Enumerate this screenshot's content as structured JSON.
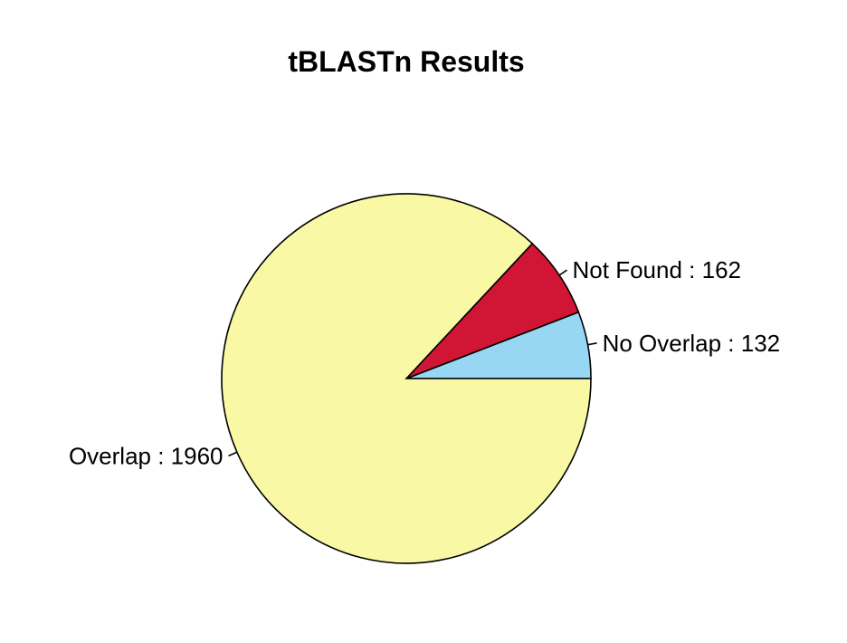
{
  "chart_data": {
    "type": "pie",
    "title": "tBLASTn Results",
    "slices": [
      {
        "label": "No Overlap",
        "value": 132,
        "color": "#97d7f3"
      },
      {
        "label": "Not Found",
        "value": 162,
        "color": "#d01535"
      },
      {
        "label": "Overlap",
        "value": 1960,
        "color": "#f9f9a5"
      }
    ],
    "label_separator": " :  ",
    "start_angle_deg": 0,
    "direction": "counterclockwise",
    "legend": "none"
  }
}
